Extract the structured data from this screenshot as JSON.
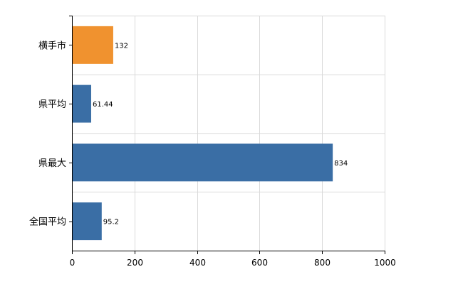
{
  "chart_data": {
    "type": "bar",
    "orientation": "horizontal",
    "categories": [
      "横手市",
      "県平均",
      "県最大",
      "全国平均"
    ],
    "values": [
      132,
      61.44,
      834,
      95.2
    ],
    "value_labels": [
      "132",
      "61.44",
      "834",
      "95.2"
    ],
    "bar_colors": [
      "#f0922f",
      "#3a6ea5",
      "#3a6ea5",
      "#3a6ea5"
    ],
    "xlim": [
      0,
      1000
    ],
    "xticks": [
      0,
      200,
      400,
      600,
      800,
      1000
    ],
    "grid": true,
    "legend": "none",
    "title": "",
    "xlabel": "",
    "ylabel": ""
  },
  "colors": {
    "highlight": "#f0922f",
    "bar": "#3a6ea5",
    "grid": "#d9d9d9",
    "axis": "#000000"
  }
}
